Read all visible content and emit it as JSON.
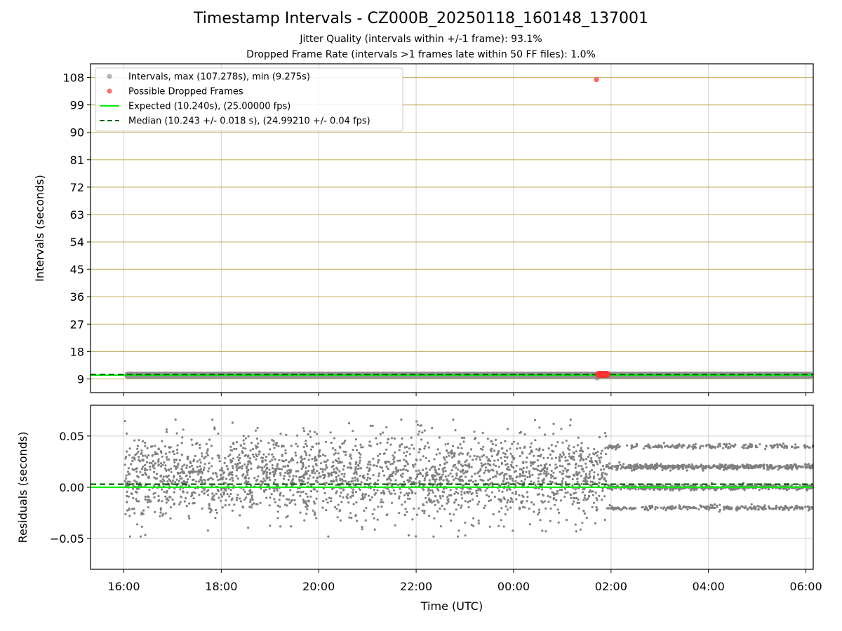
{
  "figure": {
    "title": "Timestamp Intervals - CZ000B_20250118_160148_137001",
    "subtitle_1": "Jitter Quality (intervals within +/-1 frame): 93.1%",
    "subtitle_2": "Dropped Frame Rate (intervals >1 frames late within 50 FF files): 1.0%"
  },
  "colors": {
    "intervals": "#808080",
    "dropped": "#ff3333",
    "expected": "#00ee00",
    "median": "#006400",
    "hgrid_top": "#c8b46e",
    "grid": "#d0d0d0"
  },
  "chart_data": [
    {
      "type": "scatter",
      "title": "",
      "xlabel": "",
      "ylabel": "Intervals (seconds)",
      "xlim": [
        "2025-01-18T15:19",
        "2025-01-19T06:09"
      ],
      "ylim": [
        4.5,
        112.5
      ],
      "yticks": [
        9,
        18,
        27,
        36,
        45,
        54,
        63,
        72,
        81,
        90,
        99,
        108
      ],
      "ytick_labels": [
        "9",
        "18",
        "27",
        "36",
        "45",
        "54",
        "63",
        "72",
        "81",
        "90",
        "99",
        "108"
      ],
      "grid": true,
      "legend_position": "top-left",
      "series": [
        {
          "name": "Intervals, max (107.278s), min (9.275s)",
          "kind": "points",
          "x_range": [
            "2025-01-18T16:01",
            "2025-01-19T06:09"
          ],
          "y_center": 10.24,
          "y_spread": 0.05,
          "max": 107.278,
          "min": 9.275
        },
        {
          "name": "Possible Dropped Frames",
          "kind": "points",
          "points": [
            {
              "x": "2025-01-19T01:42",
              "y": 107.278
            },
            {
              "x": "2025-01-19T01:45",
              "y": 10.5
            },
            {
              "x": "2025-01-19T01:47",
              "y": 10.5
            },
            {
              "x": "2025-01-19T01:49",
              "y": 10.5
            },
            {
              "x": "2025-01-19T01:51",
              "y": 10.5
            },
            {
              "x": "2025-01-19T01:53",
              "y": 10.5
            },
            {
              "x": "2025-01-19T01:55",
              "y": 10.5
            }
          ]
        },
        {
          "name": "Expected (10.240s), (25.00000 fps)",
          "kind": "hline",
          "y": 10.24
        },
        {
          "name": "Median (10.243 +/- 0.018 s), (24.99210 +/- 0.04 fps)",
          "kind": "hline-dashed",
          "y": 10.243
        }
      ]
    },
    {
      "type": "scatter",
      "title": "",
      "xlabel": "Time (UTC)",
      "ylabel": "Residuals (seconds)",
      "xlim": [
        "2025-01-18T15:19",
        "2025-01-19T06:09"
      ],
      "ylim": [
        -0.08,
        0.08
      ],
      "yticks": [
        -0.05,
        0.0,
        0.05
      ],
      "ytick_labels": [
        "−0.05",
        "0.00",
        "0.05"
      ],
      "xticks": [
        "2025-01-18T16:00",
        "2025-01-18T18:00",
        "2025-01-18T20:00",
        "2025-01-18T22:00",
        "2025-01-19T00:00",
        "2025-01-19T02:00",
        "2025-01-19T04:00",
        "2025-01-19T06:00"
      ],
      "xtick_labels": [
        "16:00",
        "18:00",
        "20:00",
        "22:00",
        "00:00",
        "02:00",
        "04:00",
        "06:00"
      ],
      "grid": true,
      "series": [
        {
          "name": "Residuals",
          "kind": "points",
          "segments": [
            {
              "x_range": [
                "2025-01-18T16:01",
                "2025-01-19T01:55"
              ],
              "distribution": "spread",
              "mean": 0.01,
              "sd": 0.02,
              "min": -0.048,
              "max": 0.066
            },
            {
              "x_range": [
                "2025-01-19T01:55",
                "2025-01-19T06:09"
              ],
              "distribution": "bands",
              "levels": [
                -0.02,
                0.0,
                0.02,
                0.04
              ]
            }
          ]
        },
        {
          "name": "Expected",
          "kind": "hline",
          "y": 0.0
        },
        {
          "name": "Median",
          "kind": "hline-dashed",
          "y": 0.003
        }
      ]
    }
  ]
}
